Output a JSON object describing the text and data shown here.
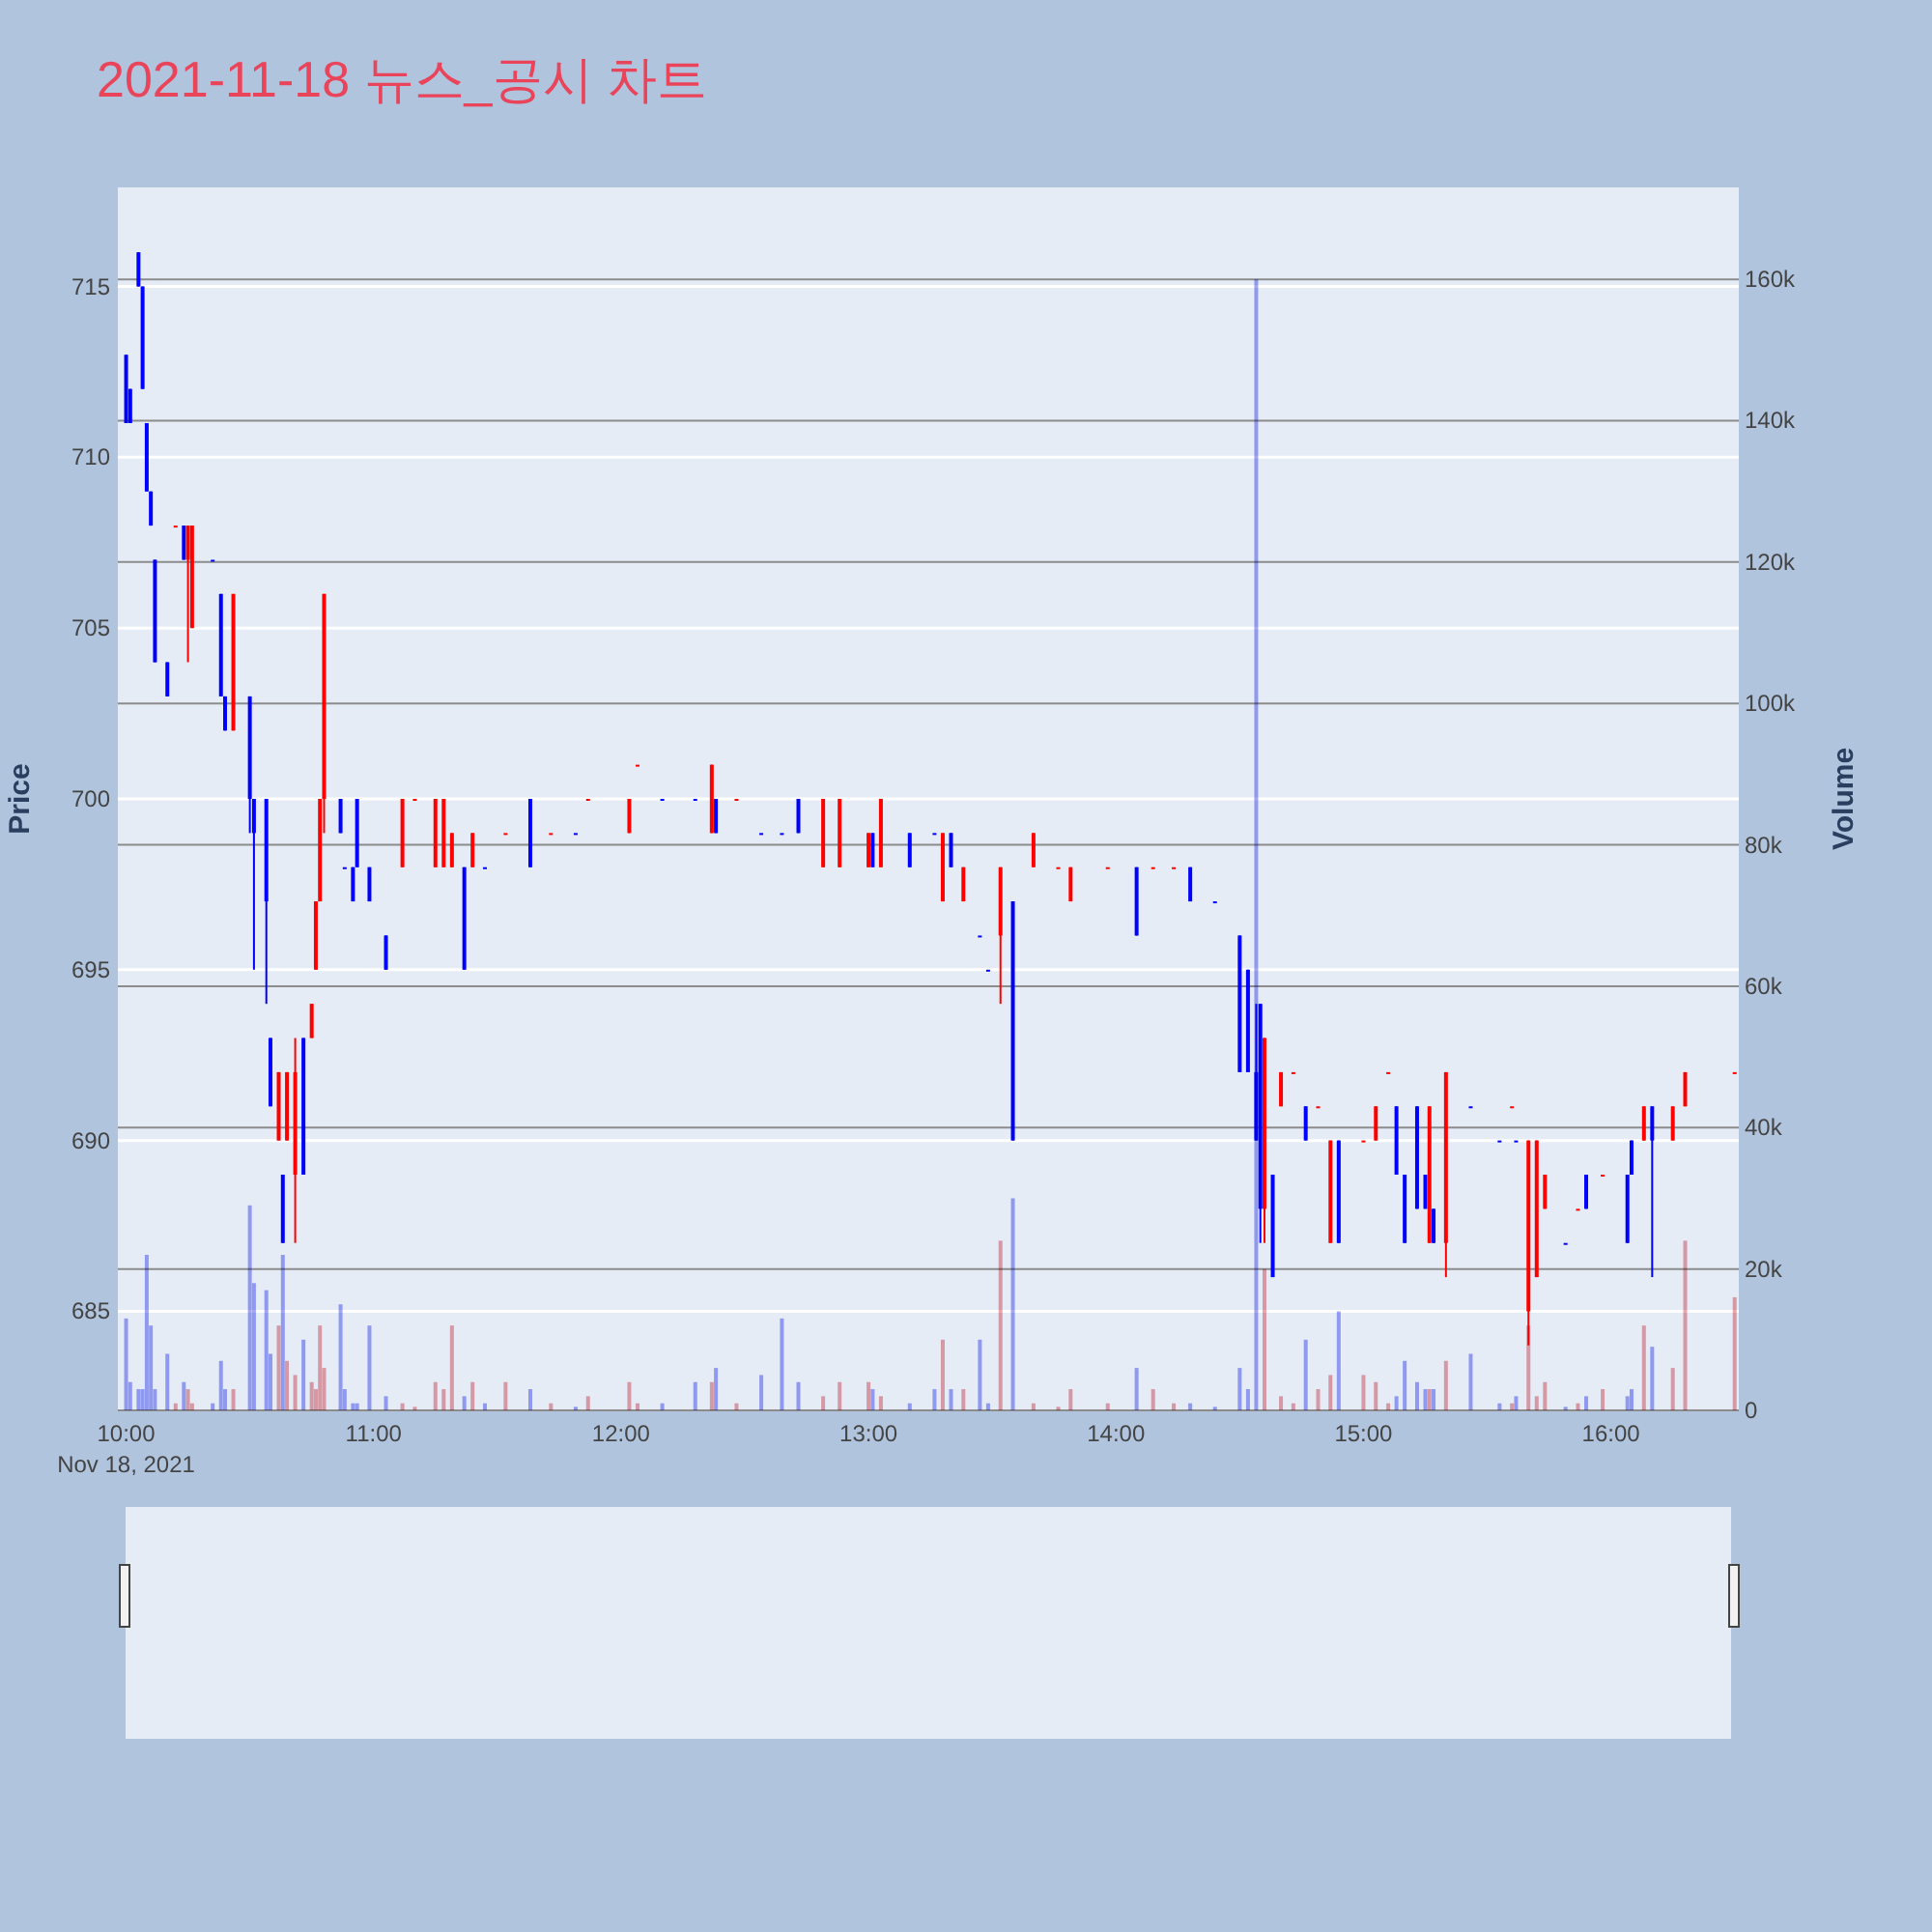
{
  "chart_data": {
    "type": "candlestick",
    "title": "2021-11-18 뉴스_공시 차트",
    "ylabel": "Price",
    "y2label": "Volume",
    "x": [
      "2021-11-18T10:00",
      "2021-11-18T10:01",
      "2021-11-18T10:03",
      "2021-11-18T10:04",
      "2021-11-18T10:05",
      "2021-11-18T10:06",
      "2021-11-18T10:07",
      "2021-11-18T10:10",
      "2021-11-18T10:12",
      "2021-11-18T10:14",
      "2021-11-18T10:15",
      "2021-11-18T10:16",
      "2021-11-18T10:21",
      "2021-11-18T10:23",
      "2021-11-18T10:24",
      "2021-11-18T10:26",
      "2021-11-18T10:30",
      "2021-11-18T10:31",
      "2021-11-18T10:34",
      "2021-11-18T10:35",
      "2021-11-18T10:37",
      "2021-11-18T10:38",
      "2021-11-18T10:39",
      "2021-11-18T10:41",
      "2021-11-18T10:43",
      "2021-11-18T10:45",
      "2021-11-18T10:46",
      "2021-11-18T10:47",
      "2021-11-18T10:48",
      "2021-11-18T10:52",
      "2021-11-18T10:53",
      "2021-11-18T10:55",
      "2021-11-18T10:56",
      "2021-11-18T10:59",
      "2021-11-18T11:03",
      "2021-11-18T11:07",
      "2021-11-18T11:10",
      "2021-11-18T11:15",
      "2021-11-18T11:17",
      "2021-11-18T11:19",
      "2021-11-18T11:22",
      "2021-11-18T11:24",
      "2021-11-18T11:27",
      "2021-11-18T11:32",
      "2021-11-18T11:38",
      "2021-11-18T11:43",
      "2021-11-18T11:49",
      "2021-11-18T11:52",
      "2021-11-18T12:02",
      "2021-11-18T12:04",
      "2021-11-18T12:10",
      "2021-11-18T12:18",
      "2021-11-18T12:22",
      "2021-11-18T12:23",
      "2021-11-18T12:28",
      "2021-11-18T12:34",
      "2021-11-18T12:39",
      "2021-11-18T12:43",
      "2021-11-18T12:49",
      "2021-11-18T12:53",
      "2021-11-18T13:00",
      "2021-11-18T13:01",
      "2021-11-18T13:03",
      "2021-11-18T13:10",
      "2021-11-18T13:16",
      "2021-11-18T13:18",
      "2021-11-18T13:20",
      "2021-11-18T13:23",
      "2021-11-18T13:27",
      "2021-11-18T13:29",
      "2021-11-18T13:32",
      "2021-11-18T13:35",
      "2021-11-18T13:40",
      "2021-11-18T13:46",
      "2021-11-18T13:49",
      "2021-11-18T13:58",
      "2021-11-18T14:05",
      "2021-11-18T14:09",
      "2021-11-18T14:14",
      "2021-11-18T14:18",
      "2021-11-18T14:24",
      "2021-11-18T14:30",
      "2021-11-18T14:32",
      "2021-11-18T14:34",
      "2021-11-18T14:35",
      "2021-11-18T14:36",
      "2021-11-18T14:38",
      "2021-11-18T14:40",
      "2021-11-18T14:43",
      "2021-11-18T14:46",
      "2021-11-18T14:49",
      "2021-11-18T14:52",
      "2021-11-18T14:54",
      "2021-11-18T15:00",
      "2021-11-18T15:03",
      "2021-11-18T15:06",
      "2021-11-18T15:08",
      "2021-11-18T15:10",
      "2021-11-18T15:13",
      "2021-11-18T15:15",
      "2021-11-18T15:16",
      "2021-11-18T15:17",
      "2021-11-18T15:20",
      "2021-11-18T15:26",
      "2021-11-18T15:33",
      "2021-11-18T15:36",
      "2021-11-18T15:37",
      "2021-11-18T15:40",
      "2021-11-18T15:42",
      "2021-11-18T15:44",
      "2021-11-18T15:49",
      "2021-11-18T15:52",
      "2021-11-18T15:54",
      "2021-11-18T15:58",
      "2021-11-18T16:04",
      "2021-11-18T16:05",
      "2021-11-18T16:08",
      "2021-11-18T16:10",
      "2021-11-18T16:15",
      "2021-11-18T16:18",
      "2021-11-18T16:30"
    ],
    "ohlc": [
      [
        713,
        713,
        711,
        711
      ],
      [
        712,
        712,
        711,
        711
      ],
      [
        716,
        716,
        715,
        715
      ],
      [
        715,
        715,
        712,
        712
      ],
      [
        711,
        711,
        709,
        709
      ],
      [
        709,
        709,
        708,
        708
      ],
      [
        707,
        707,
        704,
        704
      ],
      [
        704,
        704,
        703,
        703
      ],
      [
        708,
        708,
        708,
        708
      ],
      [
        708,
        708,
        707,
        707
      ],
      [
        707,
        708,
        704,
        708
      ],
      [
        705,
        708,
        705,
        708
      ],
      [
        707,
        707,
        707,
        707
      ],
      [
        706,
        706,
        703,
        703
      ],
      [
        703,
        703,
        702,
        702
      ],
      [
        702,
        706,
        702,
        706
      ],
      [
        703,
        703,
        699,
        700
      ],
      [
        700,
        700,
        695,
        699
      ],
      [
        700,
        700,
        694,
        697
      ],
      [
        693,
        693,
        691,
        691
      ],
      [
        690,
        692,
        690,
        692
      ],
      [
        689,
        689,
        687,
        687
      ],
      [
        690,
        692,
        690,
        692
      ],
      [
        689,
        693,
        687,
        692
      ],
      [
        693,
        693,
        689,
        689
      ],
      [
        693,
        694,
        693,
        694
      ],
      [
        695,
        697,
        695,
        697
      ],
      [
        697,
        700,
        697,
        700
      ],
      [
        700,
        706,
        699,
        706
      ],
      [
        700,
        700,
        699,
        699
      ],
      [
        698,
        698,
        698,
        698
      ],
      [
        698,
        698,
        697,
        697
      ],
      [
        700,
        700,
        698,
        698
      ],
      [
        698,
        698,
        697,
        697
      ],
      [
        696,
        696,
        695,
        695
      ],
      [
        698,
        700,
        698,
        700
      ],
      [
        700,
        700,
        700,
        700
      ],
      [
        698,
        700,
        698,
        700
      ],
      [
        698,
        700,
        698,
        700
      ],
      [
        698,
        699,
        698,
        699
      ],
      [
        698,
        698,
        695,
        695
      ],
      [
        698,
        699,
        698,
        699
      ],
      [
        698,
        698,
        698,
        698
      ],
      [
        699,
        699,
        699,
        699
      ],
      [
        700,
        700,
        698,
        698
      ],
      [
        699,
        699,
        699,
        699
      ],
      [
        699,
        699,
        699,
        699
      ],
      [
        700,
        700,
        700,
        700
      ],
      [
        699,
        700,
        699,
        700
      ],
      [
        701,
        701,
        701,
        701
      ],
      [
        700,
        700,
        700,
        700
      ],
      [
        700,
        700,
        700,
        700
      ],
      [
        699,
        701,
        699,
        701
      ],
      [
        700,
        700,
        699,
        699
      ],
      [
        700,
        700,
        700,
        700
      ],
      [
        699,
        699,
        699,
        699
      ],
      [
        699,
        699,
        699,
        699
      ],
      [
        700,
        700,
        699,
        699
      ],
      [
        698,
        700,
        698,
        700
      ],
      [
        698,
        700,
        698,
        700
      ],
      [
        698,
        699,
        698,
        699
      ],
      [
        699,
        699,
        698,
        698
      ],
      [
        698,
        700,
        698,
        700
      ],
      [
        699,
        699,
        698,
        698
      ],
      [
        699,
        699,
        699,
        699
      ],
      [
        697,
        699,
        697,
        699
      ],
      [
        699,
        699,
        698,
        698
      ],
      [
        697,
        698,
        697,
        698
      ],
      [
        696,
        696,
        696,
        696
      ],
      [
        695,
        695,
        695,
        695
      ],
      [
        696,
        698,
        694,
        698
      ],
      [
        697,
        697,
        690,
        690
      ],
      [
        698,
        699,
        698,
        699
      ],
      [
        698,
        698,
        698,
        698
      ],
      [
        697,
        698,
        697,
        698
      ],
      [
        698,
        698,
        698,
        698
      ],
      [
        698,
        698,
        696,
        696
      ],
      [
        698,
        698,
        698,
        698
      ],
      [
        698,
        698,
        698,
        698
      ],
      [
        698,
        698,
        697,
        697
      ],
      [
        697,
        697,
        697,
        697
      ],
      [
        696,
        696,
        692,
        692
      ],
      [
        695,
        695,
        692,
        692
      ],
      [
        692,
        694,
        690,
        690
      ],
      [
        694,
        694,
        687,
        688
      ],
      [
        688,
        693,
        687,
        693
      ],
      [
        689,
        689,
        686,
        686
      ],
      [
        691,
        692,
        691,
        692
      ],
      [
        692,
        692,
        692,
        692
      ],
      [
        691,
        691,
        690,
        690
      ],
      [
        691,
        691,
        691,
        691
      ],
      [
        687,
        690,
        687,
        690
      ],
      [
        690,
        690,
        687,
        687
      ],
      [
        690,
        690,
        690,
        690
      ],
      [
        690,
        691,
        690,
        691
      ],
      [
        692,
        692,
        692,
        692
      ],
      [
        691,
        691,
        689,
        689
      ],
      [
        689,
        689,
        687,
        687
      ],
      [
        691,
        691,
        688,
        688
      ],
      [
        689,
        689,
        688,
        688
      ],
      [
        687,
        691,
        687,
        691
      ],
      [
        688,
        688,
        687,
        687
      ],
      [
        687,
        692,
        686,
        692
      ],
      [
        691,
        691,
        691,
        691
      ],
      [
        690,
        690,
        690,
        690
      ],
      [
        691,
        691,
        691,
        691
      ],
      [
        690,
        690,
        690,
        690
      ],
      [
        685,
        690,
        684,
        690
      ],
      [
        686,
        690,
        686,
        690
      ],
      [
        688,
        689,
        688,
        689
      ],
      [
        687,
        687,
        687,
        687
      ],
      [
        688,
        688,
        688,
        688
      ],
      [
        689,
        689,
        688,
        688
      ],
      [
        689,
        689,
        689,
        689
      ],
      [
        689,
        689,
        687,
        687
      ],
      [
        690,
        690,
        689,
        689
      ],
      [
        690,
        691,
        690,
        691
      ],
      [
        691,
        691,
        686,
        690
      ],
      [
        690,
        691,
        690,
        691
      ],
      [
        691,
        692,
        691,
        692
      ],
      [
        692,
        692,
        692,
        692
      ]
    ],
    "colors": [
      "#0000ff",
      "#0000ff",
      "#0000ff",
      "#0000ff",
      "#0000ff",
      "#0000ff",
      "#0000ff",
      "#0000ff",
      "#ff0000",
      "#0000ff",
      "#ff0000",
      "#ff0000",
      "#0000ff",
      "#0000ff",
      "#0000ff",
      "#ff0000",
      "#0000ff",
      "#0000ff",
      "#0000ff",
      "#0000ff",
      "#ff0000",
      "#0000ff",
      "#ff0000",
      "#ff0000",
      "#0000ff",
      "#ff0000",
      "#ff0000",
      "#ff0000",
      "#ff0000",
      "#0000ff",
      "#0000ff",
      "#0000ff",
      "#0000ff",
      "#0000ff",
      "#0000ff",
      "#ff0000",
      "#ff0000",
      "#ff0000",
      "#ff0000",
      "#ff0000",
      "#0000ff",
      "#ff0000",
      "#0000ff",
      "#ff0000",
      "#0000ff",
      "#ff0000",
      "#0000ff",
      "#ff0000",
      "#ff0000",
      "#ff0000",
      "#0000ff",
      "#0000ff",
      "#ff0000",
      "#0000ff",
      "#ff0000",
      "#0000ff",
      "#0000ff",
      "#0000ff",
      "#ff0000",
      "#ff0000",
      "#ff0000",
      "#0000ff",
      "#ff0000",
      "#0000ff",
      "#0000ff",
      "#ff0000",
      "#0000ff",
      "#ff0000",
      "#0000ff",
      "#0000ff",
      "#ff0000",
      "#0000ff",
      "#ff0000",
      "#ff0000",
      "#ff0000",
      "#ff0000",
      "#0000ff",
      "#ff0000",
      "#ff0000",
      "#0000ff",
      "#0000ff",
      "#0000ff",
      "#0000ff",
      "#0000ff",
      "#0000ff",
      "#ff0000",
      "#0000ff",
      "#ff0000",
      "#ff0000",
      "#0000ff",
      "#ff0000",
      "#ff0000",
      "#0000ff",
      "#ff0000",
      "#ff0000",
      "#ff0000",
      "#0000ff",
      "#0000ff",
      "#0000ff",
      "#0000ff",
      "#ff0000",
      "#0000ff",
      "#ff0000",
      "#0000ff",
      "#0000ff",
      "#ff0000",
      "#0000ff",
      "#ff0000",
      "#ff0000",
      "#ff0000",
      "#0000ff",
      "#ff0000",
      "#0000ff",
      "#ff0000",
      "#0000ff",
      "#0000ff",
      "#ff0000",
      "#0000ff",
      "#ff0000",
      "#ff0000",
      "#ff0000"
    ],
    "series": [
      {
        "type": "bar",
        "axis": "y2",
        "values": [
          13000,
          4000,
          3000,
          3000,
          22000,
          12000,
          3000,
          8000,
          1000,
          4000,
          3000,
          1000,
          1000,
          7000,
          3000,
          3000,
          29000,
          18000,
          17000,
          8000,
          12000,
          22000,
          7000,
          5000,
          10000,
          4000,
          3000,
          12000,
          6000,
          15000,
          3000,
          1000,
          1000,
          12000,
          2000,
          1000,
          500,
          4000,
          3000,
          12000,
          2000,
          4000,
          1000,
          4000,
          3000,
          1000,
          500,
          2000,
          4000,
          1000,
          1000,
          4000,
          4000,
          6000,
          1000,
          5000,
          13000,
          4000,
          2000,
          4000,
          4000,
          3000,
          2000,
          1000,
          3000,
          10000,
          3000,
          3000,
          10000,
          1000,
          24000,
          30000,
          1000,
          500,
          3000,
          1000,
          6000,
          3000,
          1000,
          1000,
          500,
          6000,
          3000,
          160000,
          null,
          20000,
          null,
          2000,
          1000,
          10000,
          3000,
          5000,
          14000,
          5000,
          4000,
          1000,
          2000,
          7000,
          4000,
          3000,
          3000,
          3000,
          7000,
          8000,
          1000,
          1000,
          2000,
          12000,
          2000,
          4000,
          500,
          1000,
          2000,
          3000,
          2000,
          3000,
          12000,
          9000,
          6000,
          24000,
          16000
        ],
        "colors": [
          "#a0a5f9",
          "#a0a5f9",
          "#a0a5f9",
          "#a0a5f9",
          "#a0a5f9",
          "#a0a5f9",
          "#a0a5f9",
          "#a0a5f9",
          "#eda5ac",
          "#a0a5f9",
          "#eda5ac",
          "#eda5ac",
          "#a0a5f9",
          "#a0a5f9",
          "#a0a5f9",
          "#eda5ac",
          "#a0a5f9",
          "#a0a5f9",
          "#a0a5f9",
          "#a0a5f9",
          "#eda5ac",
          "#a0a5f9",
          "#eda5ac",
          "#eda5ac",
          "#a0a5f9",
          "#eda5ac",
          "#eda5ac",
          "#eda5ac",
          "#eda5ac",
          "#a0a5f9",
          "#a0a5f9",
          "#a0a5f9",
          "#a0a5f9",
          "#a0a5f9",
          "#a0a5f9",
          "#eda5ac",
          "#eda5ac",
          "#eda5ac",
          "#eda5ac",
          "#eda5ac",
          "#a0a5f9",
          "#eda5ac",
          "#a0a5f9",
          "#eda5ac",
          "#a0a5f9",
          "#eda5ac",
          "#a0a5f9",
          "#eda5ac",
          "#eda5ac",
          "#eda5ac",
          "#a0a5f9",
          "#a0a5f9",
          "#eda5ac",
          "#a0a5f9",
          "#eda5ac",
          "#a0a5f9",
          "#a0a5f9",
          "#a0a5f9",
          "#eda5ac",
          "#eda5ac",
          "#eda5ac",
          "#a0a5f9",
          "#eda5ac",
          "#a0a5f9",
          "#a0a5f9",
          "#eda5ac",
          "#a0a5f9",
          "#eda5ac",
          "#a0a5f9",
          "#a0a5f9",
          "#eda5ac",
          "#a0a5f9",
          "#eda5ac",
          "#eda5ac",
          "#eda5ac",
          "#eda5ac",
          "#a0a5f9",
          "#eda5ac",
          "#eda5ac",
          "#a0a5f9",
          "#a0a5f9",
          "#a0a5f9",
          "#a0a5f9",
          "#a0a5f9",
          "#a0a5f9",
          "#eda5ac",
          "#a0a5f9",
          "#eda5ac",
          "#eda5ac",
          "#a0a5f9",
          "#eda5ac",
          "#eda5ac",
          "#a0a5f9",
          "#eda5ac",
          "#eda5ac",
          "#eda5ac",
          "#a0a5f9",
          "#a0a5f9",
          "#a0a5f9",
          "#a0a5f9",
          "#eda5ac",
          "#a0a5f9",
          "#eda5ac",
          "#a0a5f9",
          "#a0a5f9",
          "#eda5ac",
          "#a0a5f9",
          "#eda5ac",
          "#eda5ac",
          "#eda5ac",
          "#a0a5f9",
          "#eda5ac",
          "#a0a5f9",
          "#eda5ac",
          "#a0a5f9",
          "#a0a5f9",
          "#eda5ac",
          "#a0a5f9",
          "#eda5ac",
          "#eda5ac",
          "#eda5ac"
        ]
      }
    ],
    "xlim": [
      "2021-11-18T09:58",
      "2021-11-18T16:31"
    ],
    "xticks": [
      {
        "value": "2021-11-18T10:00",
        "label": "10:00"
      },
      {
        "value": "2021-11-18T11:00",
        "label": "11:00"
      },
      {
        "value": "2021-11-18T12:00",
        "label": "12:00"
      },
      {
        "value": "2021-11-18T13:00",
        "label": "13:00"
      },
      {
        "value": "2021-11-18T14:00",
        "label": "14:00"
      },
      {
        "value": "2021-11-18T15:00",
        "label": "15:00"
      },
      {
        "value": "2021-11-18T16:00",
        "label": "16:00"
      }
    ],
    "ylim": [
      682.1,
      717.9
    ],
    "yticks": [
      685,
      690,
      695,
      700,
      705,
      710,
      715
    ],
    "y2lim": [
      0,
      173000
    ],
    "y2ticks": [
      0,
      {
        "value": 20000,
        "label": "20k"
      },
      {
        "value": 40000,
        "label": "40k"
      },
      {
        "value": 60000,
        "label": "60k"
      },
      {
        "value": 80000,
        "label": "80k"
      },
      {
        "value": 100000,
        "label": "100k"
      },
      {
        "value": 120000,
        "label": "120k"
      },
      {
        "value": 140000,
        "label": "140k"
      },
      {
        "value": 160000,
        "label": "160k"
      }
    ],
    "grid": "y",
    "annotations": [
      "Nov 18, 2021"
    ]
  }
}
